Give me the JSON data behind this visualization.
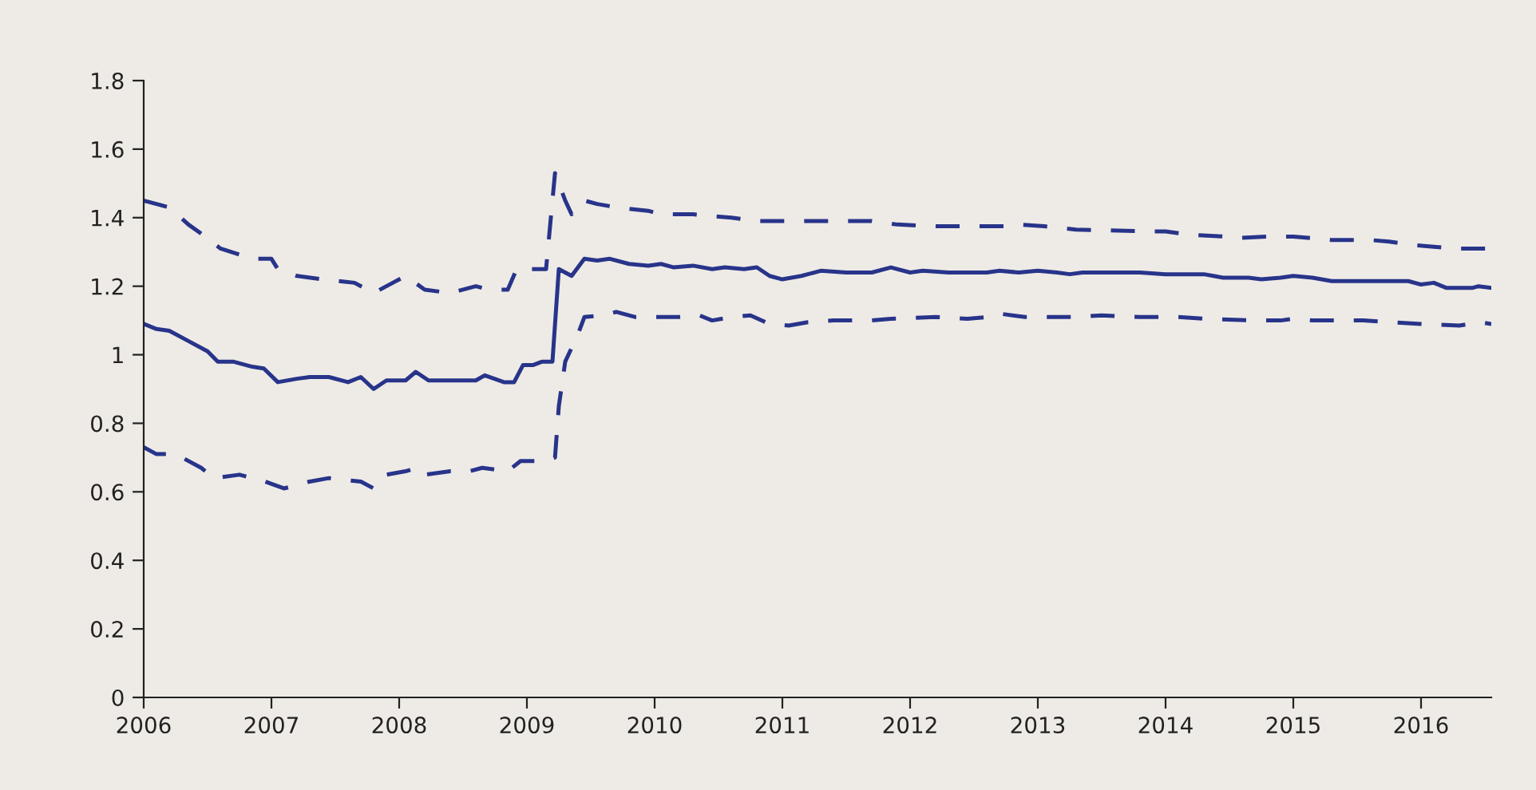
{
  "chart_data": {
    "type": "line",
    "xlim": [
      2006,
      2016.55
    ],
    "xticks": [
      2006,
      2007,
      2008,
      2009,
      2010,
      2011,
      2012,
      2013,
      2014,
      2015,
      2016
    ],
    "ylim": [
      0,
      1.8
    ],
    "yticks": [
      0,
      0.2,
      0.4,
      0.6,
      0.8,
      1,
      1.2,
      1.4,
      1.6,
      1.8
    ],
    "grid": false,
    "legend": false,
    "marker": "none",
    "series": [
      {
        "color": "#28348a",
        "line_style": "solid",
        "x": [
          2006.0,
          2006.1,
          2006.2,
          2006.35,
          2006.5,
          2006.58,
          2006.7,
          2006.85,
          2006.94,
          2007.05,
          2007.2,
          2007.3,
          2007.45,
          2007.6,
          2007.7,
          2007.8,
          2007.9,
          2008.05,
          2008.13,
          2008.23,
          2008.6,
          2008.67,
          2008.82,
          2008.9,
          2008.97,
          2009.05,
          2009.12,
          2009.2,
          2009.25,
          2009.35,
          2009.45,
          2009.55,
          2009.65,
          2009.8,
          2009.95,
          2010.05,
          2010.15,
          2010.3,
          2010.45,
          2010.55,
          2010.7,
          2010.8,
          2010.9,
          2011.0,
          2011.15,
          2011.3,
          2011.5,
          2011.7,
          2011.85,
          2012.0,
          2012.1,
          2012.3,
          2012.6,
          2012.7,
          2012.85,
          2013.0,
          2013.15,
          2013.25,
          2013.35,
          2013.8,
          2014.0,
          2014.3,
          2014.45,
          2014.65,
          2014.75,
          2014.9,
          2015.0,
          2015.15,
          2015.3,
          2015.9,
          2016.0,
          2016.1,
          2016.2,
          2016.4,
          2016.45,
          2016.55
        ],
        "values": [
          1.09,
          1.075,
          1.07,
          1.04,
          1.01,
          0.98,
          0.98,
          0.965,
          0.96,
          0.92,
          0.93,
          0.935,
          0.935,
          0.92,
          0.935,
          0.9,
          0.925,
          0.925,
          0.95,
          0.925,
          0.925,
          0.94,
          0.92,
          0.92,
          0.97,
          0.97,
          0.98,
          0.98,
          1.25,
          1.23,
          1.28,
          1.275,
          1.28,
          1.265,
          1.26,
          1.265,
          1.255,
          1.26,
          1.25,
          1.255,
          1.25,
          1.255,
          1.23,
          1.22,
          1.23,
          1.245,
          1.24,
          1.24,
          1.255,
          1.24,
          1.245,
          1.24,
          1.24,
          1.245,
          1.24,
          1.245,
          1.24,
          1.235,
          1.24,
          1.24,
          1.235,
          1.235,
          1.225,
          1.225,
          1.22,
          1.225,
          1.23,
          1.225,
          1.215,
          1.215,
          1.205,
          1.21,
          1.195,
          1.195,
          1.2,
          1.195
        ]
      },
      {
        "color": "#28348a",
        "line_style": "dashed",
        "x": [
          2006.0,
          2006.2,
          2006.35,
          2006.5,
          2006.6,
          2006.85,
          2007.0,
          2007.05,
          2007.2,
          2007.4,
          2007.65,
          2007.8,
          2007.95,
          2008.05,
          2008.2,
          2008.4,
          2008.6,
          2008.7,
          2008.85,
          2008.92,
          2009.05,
          2009.15,
          2009.2,
          2009.22,
          2009.3,
          2009.35,
          2009.45,
          2009.55,
          2009.7,
          2009.95,
          2010.05,
          2010.3,
          2010.6,
          2010.8,
          2011.0,
          2011.15,
          2011.4,
          2011.7,
          2011.9,
          2012.2,
          2012.5,
          2012.75,
          2012.85,
          2013.05,
          2013.3,
          2013.9,
          2014.0,
          2014.2,
          2014.45,
          2014.55,
          2014.8,
          2015.0,
          2015.15,
          2015.3,
          2015.6,
          2015.75,
          2015.95,
          2016.1,
          2016.25,
          2016.55
        ],
        "values": [
          1.45,
          1.43,
          1.38,
          1.34,
          1.31,
          1.28,
          1.28,
          1.25,
          1.23,
          1.22,
          1.21,
          1.18,
          1.21,
          1.23,
          1.19,
          1.18,
          1.2,
          1.19,
          1.19,
          1.25,
          1.25,
          1.25,
          1.45,
          1.53,
          1.45,
          1.41,
          1.45,
          1.44,
          1.43,
          1.42,
          1.41,
          1.41,
          1.4,
          1.39,
          1.39,
          1.39,
          1.39,
          1.39,
          1.38,
          1.375,
          1.375,
          1.375,
          1.38,
          1.375,
          1.365,
          1.36,
          1.36,
          1.35,
          1.345,
          1.34,
          1.345,
          1.345,
          1.34,
          1.335,
          1.335,
          1.33,
          1.32,
          1.315,
          1.31,
          1.31
        ]
      },
      {
        "color": "#28348a",
        "line_style": "dashed",
        "x": [
          2006.0,
          2006.1,
          2006.25,
          2006.45,
          2006.55,
          2006.75,
          2006.95,
          2007.1,
          2007.3,
          2007.45,
          2007.55,
          2007.7,
          2007.8,
          2007.9,
          2008.05,
          2008.15,
          2008.2,
          2008.4,
          2008.55,
          2008.65,
          2008.85,
          2008.95,
          2009.15,
          2009.22,
          2009.25,
          2009.3,
          2009.4,
          2009.45,
          2009.6,
          2009.7,
          2009.85,
          2010.2,
          2010.35,
          2010.45,
          2010.6,
          2010.75,
          2010.9,
          2011.05,
          2011.2,
          2011.4,
          2011.7,
          2011.85,
          2012.2,
          2012.45,
          2012.6,
          2012.7,
          2012.9,
          2013.3,
          2013.5,
          2013.8,
          2014.1,
          2014.3,
          2014.7,
          2014.9,
          2015.0,
          2015.15,
          2015.55,
          2015.75,
          2016.0,
          2016.3,
          2016.45,
          2016.55
        ],
        "values": [
          0.73,
          0.71,
          0.71,
          0.67,
          0.64,
          0.65,
          0.63,
          0.61,
          0.63,
          0.64,
          0.635,
          0.63,
          0.61,
          0.65,
          0.66,
          0.67,
          0.65,
          0.66,
          0.66,
          0.67,
          0.66,
          0.69,
          0.69,
          0.7,
          0.85,
          0.98,
          1.06,
          1.11,
          1.115,
          1.125,
          1.11,
          1.11,
          1.115,
          1.1,
          1.11,
          1.115,
          1.09,
          1.085,
          1.095,
          1.1,
          1.1,
          1.105,
          1.11,
          1.105,
          1.11,
          1.12,
          1.11,
          1.11,
          1.115,
          1.11,
          1.11,
          1.105,
          1.1,
          1.1,
          1.105,
          1.1,
          1.1,
          1.095,
          1.09,
          1.085,
          1.095,
          1.09
        ]
      }
    ]
  }
}
